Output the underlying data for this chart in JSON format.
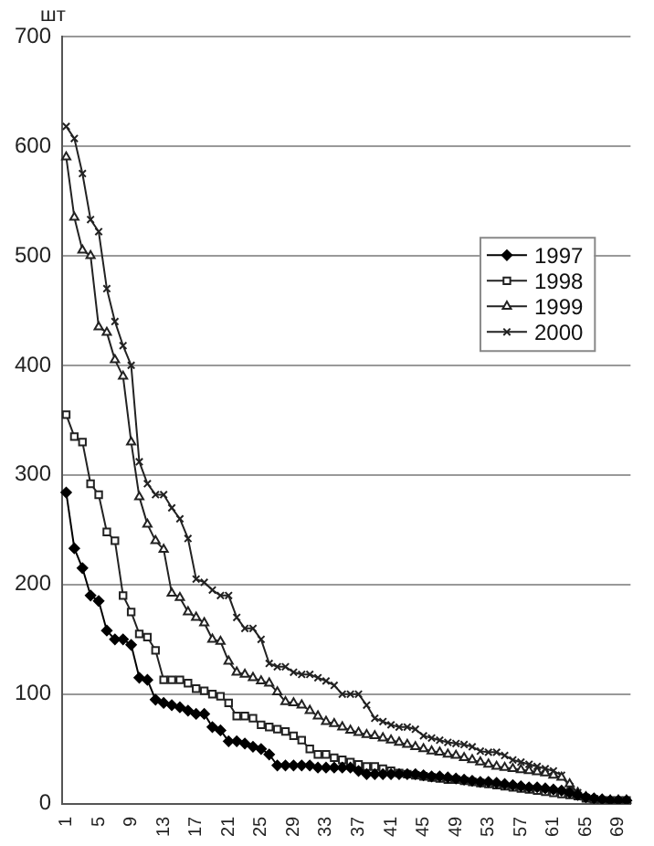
{
  "chart_data": {
    "type": "line",
    "ylabel": "шт",
    "categories": [
      "1",
      null,
      null,
      null,
      "5",
      null,
      null,
      null,
      "9",
      null,
      null,
      null,
      "13",
      null,
      null,
      null,
      "17",
      null,
      null,
      null,
      "21",
      null,
      null,
      null,
      "25",
      null,
      null,
      null,
      "29",
      null,
      null,
      null,
      "33",
      null,
      null,
      null,
      "37",
      null,
      null,
      null,
      "41",
      null,
      null,
      null,
      "45",
      null,
      null,
      null,
      "49",
      null,
      null,
      null,
      "53",
      null,
      null,
      null,
      "57",
      null,
      null,
      null,
      "61",
      null,
      null,
      null,
      "65",
      null,
      null,
      null,
      "69",
      null
    ],
    "series": [
      {
        "name": "1997",
        "color": "#000000",
        "marker": "diamond",
        "values": [
          284,
          233,
          215,
          190,
          185,
          158,
          150,
          150,
          145,
          115,
          113,
          95,
          92,
          90,
          88,
          85,
          82,
          82,
          70,
          67,
          57,
          57,
          55,
          52,
          50,
          45,
          35,
          35,
          35,
          35,
          35,
          33,
          33,
          33,
          33,
          33,
          30,
          27,
          27,
          27,
          27,
          27,
          27,
          27,
          26,
          25,
          25,
          24,
          23,
          22,
          21,
          20,
          20,
          19,
          18,
          17,
          16,
          15,
          15,
          14,
          13,
          12,
          10,
          8,
          6,
          5,
          4,
          3,
          3,
          3
        ]
      },
      {
        "name": "1998",
        "color": "#222222",
        "marker": "square",
        "values": [
          355,
          335,
          330,
          292,
          282,
          248,
          240,
          190,
          175,
          155,
          152,
          140,
          113,
          113,
          113,
          110,
          105,
          103,
          100,
          98,
          92,
          80,
          80,
          78,
          72,
          70,
          68,
          66,
          62,
          58,
          50,
          45,
          45,
          42,
          40,
          38,
          36,
          34,
          34,
          32,
          30,
          28,
          27,
          26,
          25,
          24,
          23,
          22,
          22,
          21,
          20,
          19,
          18,
          17,
          16,
          15,
          14,
          13,
          12,
          11,
          10,
          9,
          8,
          7,
          5,
          4,
          3,
          3,
          3,
          3
        ]
      },
      {
        "name": "1999",
        "color": "#222222",
        "marker": "triangle",
        "values": [
          590,
          535,
          505,
          500,
          435,
          430,
          405,
          390,
          330,
          280,
          255,
          240,
          232,
          192,
          188,
          175,
          170,
          165,
          150,
          148,
          130,
          120,
          118,
          115,
          112,
          110,
          102,
          93,
          92,
          90,
          85,
          80,
          75,
          73,
          70,
          67,
          65,
          63,
          62,
          60,
          58,
          56,
          54,
          52,
          50,
          48,
          47,
          45,
          44,
          42,
          40,
          38,
          36,
          34,
          33,
          32,
          31,
          30,
          29,
          28,
          26,
          24,
          18,
          10,
          6,
          4,
          3,
          3,
          3,
          3
        ]
      },
      {
        "name": "2000",
        "color": "#222222",
        "marker": "cross",
        "values": [
          618,
          607,
          575,
          533,
          522,
          470,
          440,
          418,
          400,
          312,
          292,
          282,
          282,
          270,
          260,
          242,
          205,
          202,
          195,
          190,
          190,
          170,
          160,
          160,
          150,
          128,
          125,
          125,
          120,
          118,
          118,
          115,
          112,
          108,
          100,
          100,
          100,
          90,
          78,
          75,
          72,
          70,
          70,
          68,
          62,
          60,
          58,
          56,
          55,
          54,
          52,
          48,
          47,
          47,
          44,
          40,
          38,
          36,
          34,
          32,
          30,
          26,
          16,
          10,
          6,
          4,
          3,
          3,
          3,
          3
        ]
      }
    ],
    "ylim": [
      0,
      700
    ],
    "yticks": [
      0,
      100,
      200,
      300,
      400,
      500,
      600,
      700
    ],
    "grid": "y",
    "legend": "center right",
    "line_style": "solid"
  }
}
